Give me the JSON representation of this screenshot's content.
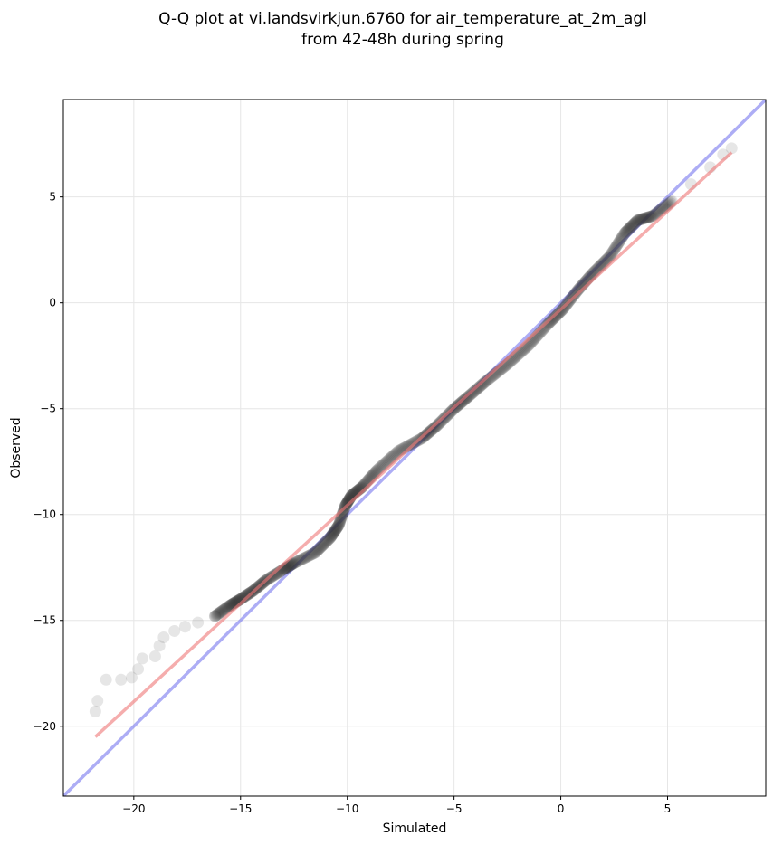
{
  "chart_data": {
    "type": "scatter",
    "title_line1": "Q-Q plot at vi.landsvirkjun.6760 for air_temperature_at_2m_agl",
    "title_line2": "from 42-48h during spring",
    "xlabel": "Simulated",
    "ylabel": "Observed",
    "xlim": [
      -23.3,
      9.6
    ],
    "ylim": [
      -23.3,
      9.6
    ],
    "xticks": [
      -20,
      -15,
      -10,
      -5,
      0,
      5
    ],
    "yticks": [
      -20,
      -15,
      -10,
      -5,
      0,
      5
    ],
    "grid": true,
    "colors": {
      "points": "#333333",
      "identity_line": "#7777ee",
      "fit_line": "#ee7777",
      "grid": "#e6e6e6"
    },
    "identity_line": {
      "from": [
        -23.3,
        -23.3
      ],
      "to": [
        9.6,
        9.6
      ]
    },
    "fit_line": {
      "from": [
        -21.8,
        -20.5
      ],
      "to": [
        8.0,
        7.1
      ]
    },
    "quantile_anchors": [
      [
        -21.8,
        -19.3
      ],
      [
        -21.7,
        -18.8
      ],
      [
        -21.3,
        -17.8
      ],
      [
        -20.6,
        -17.8
      ],
      [
        -20.1,
        -17.7
      ],
      [
        -19.8,
        -17.3
      ],
      [
        -19.6,
        -16.8
      ],
      [
        -19.0,
        -16.7
      ],
      [
        -18.8,
        -16.2
      ],
      [
        -18.6,
        -15.8
      ],
      [
        -18.1,
        -15.5
      ],
      [
        -17.6,
        -15.3
      ],
      [
        -17.0,
        -15.1
      ],
      [
        -16.2,
        -14.8
      ],
      [
        -15.5,
        -14.3
      ],
      [
        -15.0,
        -14.0
      ],
      [
        -14.4,
        -13.6
      ],
      [
        -13.8,
        -13.1
      ],
      [
        -13.0,
        -12.6
      ],
      [
        -12.5,
        -12.3
      ],
      [
        -11.5,
        -11.8
      ],
      [
        -10.8,
        -11.1
      ],
      [
        -10.4,
        -10.5
      ],
      [
        -10.1,
        -9.6
      ],
      [
        -9.8,
        -9.1
      ],
      [
        -9.3,
        -8.7
      ],
      [
        -8.6,
        -7.9
      ],
      [
        -7.6,
        -7.0
      ],
      [
        -6.5,
        -6.4
      ],
      [
        -5.8,
        -5.8
      ],
      [
        -5.0,
        -5.0
      ],
      [
        -4.3,
        -4.4
      ],
      [
        -3.5,
        -3.7
      ],
      [
        -2.5,
        -2.9
      ],
      [
        -1.5,
        -2.0
      ],
      [
        -0.6,
        -1.0
      ],
      [
        0.1,
        -0.3
      ],
      [
        0.8,
        0.6
      ],
      [
        1.5,
        1.4
      ],
      [
        2.3,
        2.2
      ],
      [
        3.0,
        3.3
      ],
      [
        3.6,
        3.9
      ],
      [
        4.3,
        4.1
      ],
      [
        5.2,
        4.8
      ],
      [
        6.1,
        5.6
      ],
      [
        7.0,
        6.4
      ],
      [
        7.6,
        7.0
      ],
      [
        8.0,
        7.3
      ]
    ],
    "n_points": 700
  }
}
